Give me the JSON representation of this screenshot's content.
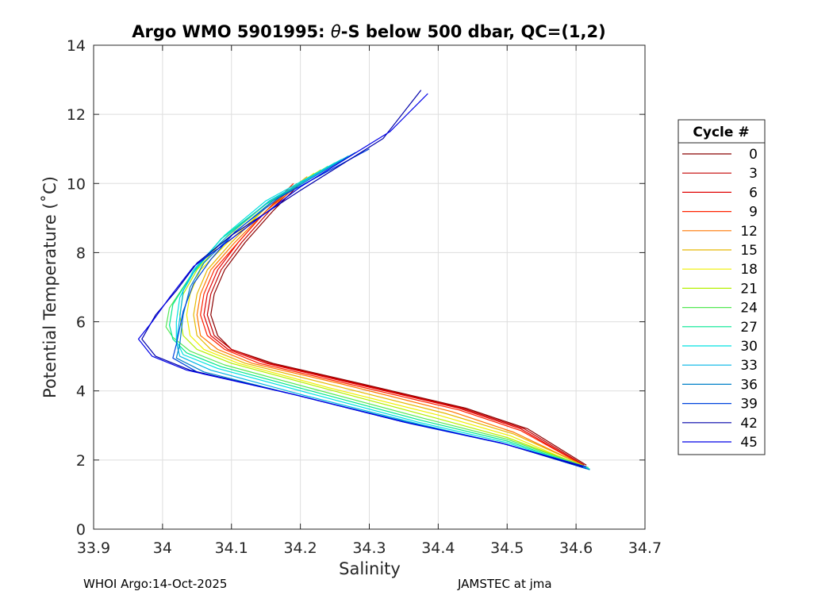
{
  "chart_data": {
    "type": "line",
    "title_prefix": "Argo WMO 5901995: ",
    "title_symbol": "θ",
    "title_suffix": "-S below 500 dbar,  QC=(1,2)",
    "xlabel": "Salinity",
    "ylabel": "Potential Temperature (˚C)",
    "xlim": [
      33.9,
      34.7
    ],
    "ylim": [
      0,
      14
    ],
    "xticks": [
      "33.9",
      "34",
      "34.1",
      "34.2",
      "34.3",
      "34.4",
      "34.5",
      "34.6",
      "34.7"
    ],
    "xtick_values": [
      33.9,
      34.0,
      34.1,
      34.2,
      34.3,
      34.4,
      34.5,
      34.6,
      34.7
    ],
    "yticks": [
      "0",
      "2",
      "4",
      "6",
      "8",
      "10",
      "12",
      "14"
    ],
    "ytick_values": [
      0,
      2,
      4,
      6,
      8,
      10,
      12,
      14
    ],
    "grid": true,
    "legend": {
      "title": "Cycle #",
      "placement": "right",
      "entries": [
        {
          "label": "0",
          "color": "#8b0000"
        },
        {
          "label": "3",
          "color": "#c40000"
        },
        {
          "label": "6",
          "color": "#e00000"
        },
        {
          "label": "9",
          "color": "#ff2200"
        },
        {
          "label": "12",
          "color": "#ff7700"
        },
        {
          "label": "15",
          "color": "#e6b800"
        },
        {
          "label": "18",
          "color": "#f0f000"
        },
        {
          "label": "21",
          "color": "#b5f000"
        },
        {
          "label": "24",
          "color": "#55e855"
        },
        {
          "label": "27",
          "color": "#00e890"
        },
        {
          "label": "30",
          "color": "#00e0e0"
        },
        {
          "label": "33",
          "color": "#00b5e5"
        },
        {
          "label": "36",
          "color": "#0080c8"
        },
        {
          "label": "39",
          "color": "#0044dd"
        },
        {
          "label": "42",
          "color": "#0000aa"
        },
        {
          "label": "45",
          "color": "#0000e8"
        }
      ]
    },
    "series": [
      {
        "name": "0",
        "s": [
          34.615,
          34.53,
          34.44,
          34.29,
          34.16,
          34.1,
          34.08,
          34.07,
          34.075,
          34.09,
          34.12,
          34.16,
          34.2
        ],
        "t": [
          1.85,
          2.9,
          3.5,
          4.2,
          4.8,
          5.2,
          5.6,
          6.2,
          6.8,
          7.5,
          8.3,
          9.2,
          10.0
        ]
      },
      {
        "name": "3",
        "s": [
          34.612,
          34.525,
          34.435,
          34.285,
          34.155,
          34.1,
          34.075,
          34.065,
          34.07,
          34.085,
          34.115,
          34.155,
          34.2
        ],
        "t": [
          1.85,
          2.9,
          3.5,
          4.2,
          4.8,
          5.2,
          5.6,
          6.2,
          6.8,
          7.5,
          8.3,
          9.2,
          10.05
        ]
      },
      {
        "name": "6",
        "s": [
          34.61,
          34.52,
          34.43,
          34.28,
          34.15,
          34.095,
          34.07,
          34.06,
          34.065,
          34.08,
          34.11,
          34.15,
          34.195
        ],
        "t": [
          1.85,
          2.9,
          3.5,
          4.2,
          4.8,
          5.2,
          5.6,
          6.2,
          6.8,
          7.5,
          8.3,
          9.2,
          10.0
        ]
      },
      {
        "name": "9",
        "s": [
          34.61,
          34.52,
          34.43,
          34.27,
          34.14,
          34.09,
          34.065,
          34.055,
          34.06,
          34.075,
          34.11,
          34.15,
          34.19
        ],
        "t": [
          1.85,
          2.85,
          3.45,
          4.2,
          4.8,
          5.2,
          5.6,
          6.2,
          6.8,
          7.5,
          8.3,
          9.2,
          10.0
        ]
      },
      {
        "name": "12",
        "s": [
          34.61,
          34.51,
          34.42,
          34.26,
          34.13,
          34.08,
          34.055,
          34.05,
          34.055,
          34.07,
          34.105,
          34.15,
          34.2
        ],
        "t": [
          1.85,
          2.8,
          3.4,
          4.2,
          4.8,
          5.2,
          5.6,
          6.2,
          6.8,
          7.5,
          8.3,
          9.2,
          10.0
        ]
      },
      {
        "name": "15",
        "s": [
          34.61,
          34.51,
          34.41,
          34.25,
          34.12,
          34.07,
          34.05,
          34.045,
          34.05,
          34.065,
          34.1,
          34.15,
          34.21
        ],
        "t": [
          1.85,
          2.75,
          3.35,
          4.15,
          4.8,
          5.2,
          5.6,
          6.2,
          6.8,
          7.5,
          8.3,
          9.3,
          10.2
        ]
      },
      {
        "name": "18",
        "s": [
          34.612,
          34.505,
          34.4,
          34.24,
          34.11,
          34.06,
          34.04,
          34.035,
          34.04,
          34.055,
          34.095,
          34.15,
          34.22
        ],
        "t": [
          1.8,
          2.7,
          3.3,
          4.1,
          4.8,
          5.2,
          5.6,
          6.2,
          6.8,
          7.5,
          8.3,
          9.3,
          10.3
        ]
      },
      {
        "name": "21",
        "s": [
          34.615,
          34.5,
          34.39,
          34.23,
          34.1,
          34.05,
          34.03,
          34.025,
          34.03,
          34.05,
          34.09,
          34.15,
          34.23
        ],
        "t": [
          1.8,
          2.65,
          3.25,
          4.1,
          4.8,
          5.2,
          5.6,
          6.2,
          6.8,
          7.5,
          8.4,
          9.4,
          10.4
        ]
      },
      {
        "name": "24",
        "s": [
          34.618,
          34.5,
          34.38,
          34.22,
          34.09,
          34.04,
          34.015,
          34.005,
          34.01,
          34.04,
          34.085,
          34.15,
          34.24
        ],
        "t": [
          1.78,
          2.6,
          3.2,
          4.05,
          4.75,
          5.15,
          5.55,
          5.85,
          6.4,
          7.3,
          8.4,
          9.4,
          10.5
        ]
      },
      {
        "name": "27",
        "s": [
          34.618,
          34.5,
          34.375,
          34.215,
          34.085,
          34.035,
          34.015,
          34.01,
          34.015,
          34.04,
          34.085,
          34.15,
          34.25
        ],
        "t": [
          1.76,
          2.55,
          3.15,
          4.0,
          4.7,
          5.1,
          5.5,
          5.9,
          6.5,
          7.3,
          8.4,
          9.4,
          10.6
        ]
      },
      {
        "name": "30",
        "s": [
          34.62,
          34.5,
          34.37,
          34.21,
          34.08,
          34.03,
          34.02,
          34.02,
          34.025,
          34.045,
          34.09,
          34.15,
          34.26
        ],
        "t": [
          1.74,
          2.5,
          3.1,
          3.95,
          4.65,
          5.05,
          5.45,
          6.0,
          6.7,
          7.5,
          8.5,
          9.5,
          10.7
        ]
      },
      {
        "name": "33",
        "s": [
          34.62,
          34.5,
          34.37,
          34.2,
          34.07,
          34.025,
          34.02,
          34.025,
          34.03,
          34.05,
          34.095,
          34.155,
          34.27
        ],
        "t": [
          1.72,
          2.45,
          3.05,
          3.9,
          4.6,
          5.0,
          5.4,
          6.1,
          6.9,
          7.6,
          8.5,
          9.5,
          10.8
        ]
      },
      {
        "name": "36",
        "s": [
          34.62,
          34.5,
          34.365,
          34.2,
          34.06,
          34.02,
          34.025,
          34.03,
          34.04,
          34.06,
          34.1,
          34.16,
          34.28
        ],
        "t": [
          1.72,
          2.45,
          3.05,
          3.85,
          4.55,
          4.95,
          5.35,
          6.2,
          7.0,
          7.7,
          8.5,
          9.5,
          10.9
        ]
      },
      {
        "name": "39",
        "s": [
          34.615,
          34.5,
          34.36,
          34.2,
          34.05,
          34.015,
          34.02,
          34.03,
          34.045,
          34.07,
          34.105,
          34.17,
          34.3
        ],
        "t": [
          1.75,
          2.45,
          3.05,
          3.85,
          4.55,
          4.95,
          5.35,
          6.3,
          7.1,
          7.8,
          8.6,
          9.6,
          11.0
        ]
      },
      {
        "name": "42",
        "s": [
          34.61,
          34.49,
          34.35,
          34.19,
          34.04,
          33.99,
          33.97,
          33.99,
          34.02,
          34.05,
          34.1,
          34.2,
          34.32,
          34.375
        ],
        "t": [
          1.8,
          2.5,
          3.1,
          3.9,
          4.6,
          5.0,
          5.5,
          6.2,
          6.9,
          7.7,
          8.5,
          9.8,
          11.3,
          12.7
        ]
      },
      {
        "name": "45",
        "s": [
          34.615,
          34.49,
          34.35,
          34.19,
          34.035,
          33.985,
          33.965,
          33.985,
          34.01,
          34.045,
          34.1,
          34.2,
          34.33,
          34.385
        ],
        "t": [
          1.8,
          2.5,
          3.1,
          3.9,
          4.6,
          5.0,
          5.5,
          6.0,
          6.7,
          7.6,
          8.4,
          9.9,
          11.5,
          12.6
        ]
      }
    ]
  },
  "footer": {
    "left": "WHOI Argo:14-Oct-2025",
    "right": "JAMSTEC at jma"
  }
}
